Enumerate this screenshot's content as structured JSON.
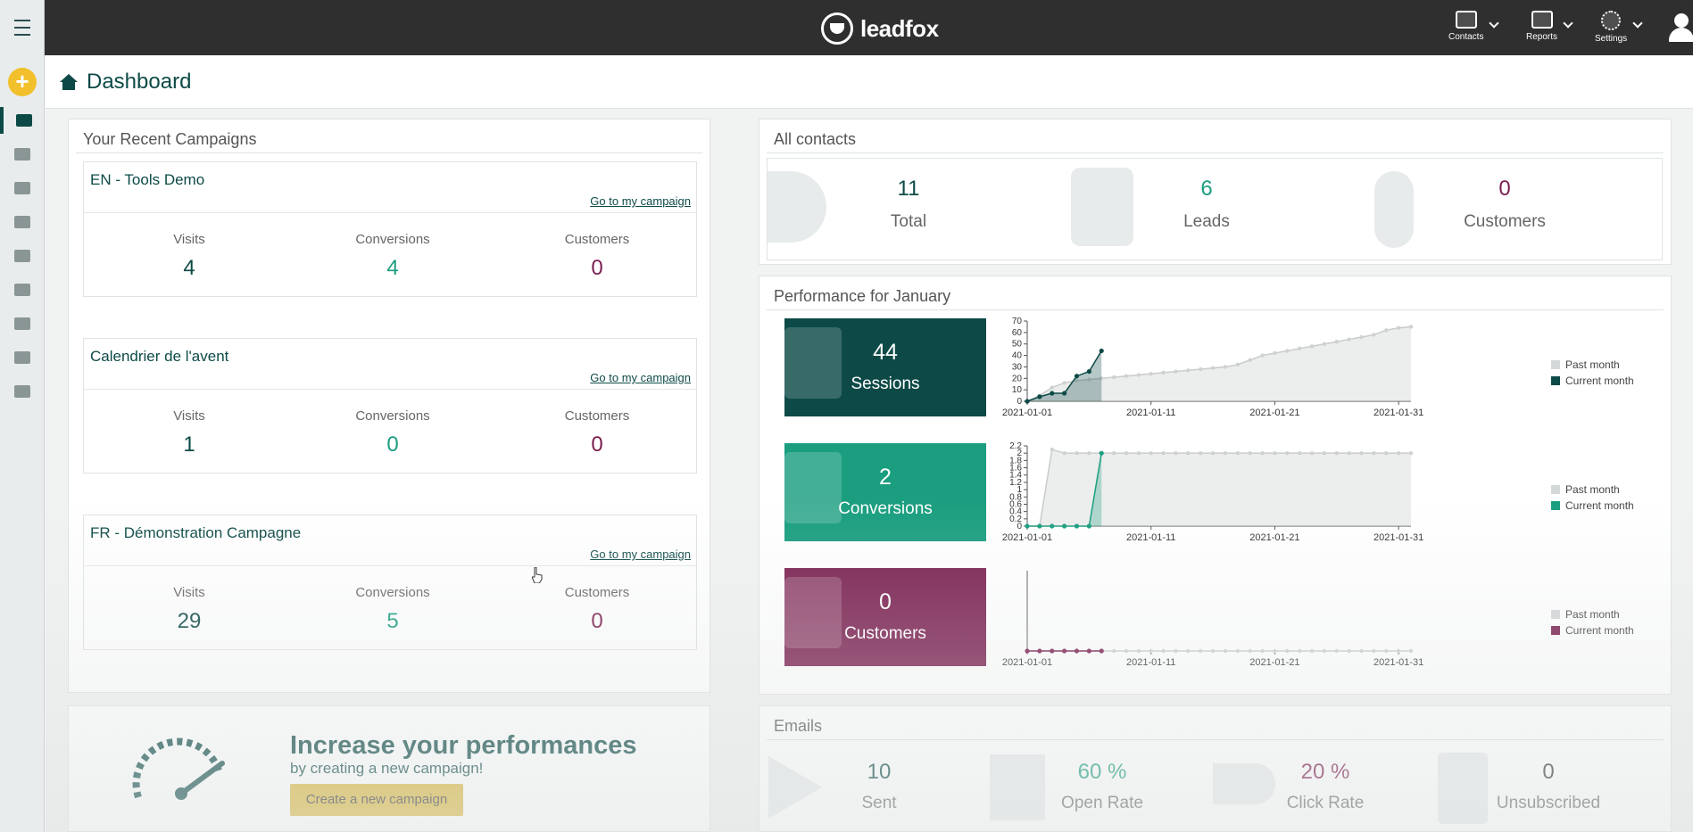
{
  "topbar": {
    "logo_text": "leadfox",
    "nav": [
      {
        "label": "Contacts",
        "icon": "contacts-icon"
      },
      {
        "label": "Reports",
        "icon": "reports-icon"
      },
      {
        "label": "Settings",
        "icon": "gear-icon"
      }
    ]
  },
  "sidebar": {
    "items": [
      "home-icon",
      "folder-icon",
      "layout-icon",
      "pages-icon",
      "mail-icon",
      "workflow-icon",
      "check-icon",
      "grid-icon",
      "image-icon"
    ],
    "active": "home-icon"
  },
  "header": {
    "title": "Dashboard"
  },
  "recent_campaigns": {
    "title": "Your Recent Campaigns",
    "link_label": "Go to my campaign",
    "labels": {
      "visits": "Visits",
      "conversions": "Conversions",
      "customers": "Customers"
    },
    "items": [
      {
        "name": "EN - Tools Demo",
        "visits": "4",
        "conversions": "4",
        "customers": "0"
      },
      {
        "name": "Calendrier de l'avent",
        "visits": "1",
        "conversions": "0",
        "customers": "0"
      },
      {
        "name": "FR - Démonstration Campagne",
        "visits": "29",
        "conversions": "5",
        "customers": "0"
      }
    ]
  },
  "all_contacts": {
    "title": "All contacts",
    "total": {
      "value": "11",
      "label": "Total"
    },
    "leads": {
      "value": "6",
      "label": "Leads"
    },
    "customers": {
      "value": "0",
      "label": "Customers"
    }
  },
  "performance": {
    "title": "Performance for January",
    "tiles": [
      {
        "value": "44",
        "label": "Sessions",
        "color": "#0d4a47"
      },
      {
        "value": "2",
        "label": "Conversions",
        "color": "#1a9e7f"
      },
      {
        "value": "0",
        "label": "Customers",
        "color": "#7a1f4f"
      }
    ],
    "legend": {
      "past": "Past month",
      "current": "Current month"
    }
  },
  "chart_data": [
    {
      "type": "area",
      "title": "Sessions",
      "x_ticks": [
        "2021-01-01",
        "2021-01-11",
        "2021-01-21",
        "2021-01-31"
      ],
      "y_ticks": [
        "0",
        "10",
        "20",
        "30",
        "40",
        "50",
        "60",
        "70"
      ],
      "ylim": [
        0,
        70
      ],
      "series": [
        {
          "name": "Past month",
          "color": "#d5d8d8",
          "values": [
            0,
            5,
            12,
            16,
            18,
            19,
            20,
            21,
            22,
            23,
            24,
            25,
            26,
            27,
            28,
            29,
            30,
            32,
            36,
            40,
            42,
            44,
            46,
            48,
            50,
            52,
            54,
            56,
            58,
            62,
            64,
            65
          ]
        },
        {
          "name": "Current month",
          "color": "#0d4a47",
          "values": [
            0,
            4,
            7,
            7,
            22,
            26,
            44
          ]
        }
      ]
    },
    {
      "type": "area",
      "title": "Conversions",
      "x_ticks": [
        "2021-01-01",
        "2021-01-11",
        "2021-01-21",
        "2021-01-31"
      ],
      "y_ticks": [
        "0",
        "0.2",
        "0.4",
        "0.6",
        "0.8",
        "1",
        "1.2",
        "1.4",
        "1.6",
        "1.8",
        "2",
        "2.2"
      ],
      "ylim": [
        0,
        2.2
      ],
      "series": [
        {
          "name": "Past month",
          "color": "#d5d8d8",
          "values": [
            0,
            0,
            2.1,
            2,
            2,
            2,
            2,
            2,
            2,
            2,
            2,
            2,
            2,
            2,
            2,
            2,
            2,
            2,
            2,
            2,
            2,
            2,
            2,
            2,
            2,
            2,
            2,
            2,
            2,
            2,
            2,
            2
          ]
        },
        {
          "name": "Current month",
          "color": "#1a9e7f",
          "values": [
            0,
            0,
            0,
            0,
            0,
            0,
            2
          ]
        }
      ]
    },
    {
      "type": "line",
      "title": "Customers",
      "x_ticks": [
        "2021-01-01",
        "2021-01-11",
        "2021-01-21",
        "2021-01-31"
      ],
      "series": [
        {
          "name": "Past month",
          "color": "#d5d8d8",
          "values": [
            0,
            0,
            0,
            0,
            0,
            0,
            0,
            0,
            0,
            0,
            0,
            0,
            0,
            0,
            0,
            0,
            0,
            0,
            0,
            0,
            0,
            0,
            0,
            0,
            0,
            0,
            0,
            0,
            0,
            0,
            0,
            0
          ]
        },
        {
          "name": "Current month",
          "color": "#7a1f4f",
          "values": [
            0,
            0,
            0,
            0,
            0,
            0,
            0
          ]
        }
      ]
    }
  ],
  "promo": {
    "headline": "Increase your performances",
    "subline": "by creating a new campaign!",
    "button": "Create a new campaign"
  },
  "emails": {
    "title": "Emails",
    "stats": [
      {
        "value": "10",
        "label": "Sent",
        "color": "#0d4a47"
      },
      {
        "value": "60 %",
        "label": "Open Rate",
        "color": "#1a9e7f"
      },
      {
        "value": "20 %",
        "label": "Click Rate",
        "color": "#7a1f4f"
      },
      {
        "value": "0",
        "label": "Unsubscribed",
        "color": "#333333"
      }
    ]
  }
}
